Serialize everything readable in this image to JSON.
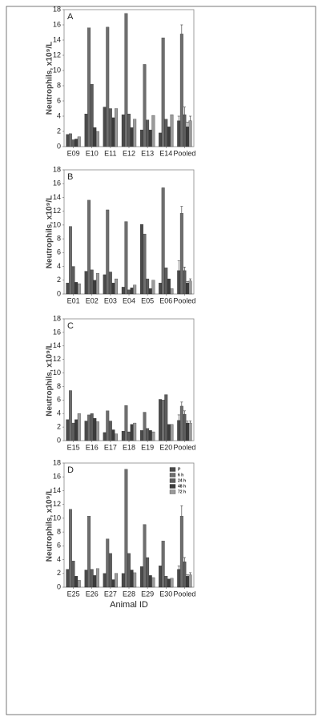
{
  "chart_data": [
    {
      "type": "bar",
      "title": "A",
      "ylabel": "Neutrophils, x10⁹/L",
      "categories": [
        "E09",
        "E10",
        "E11",
        "E12",
        "E13",
        "E14",
        "Pooled"
      ],
      "ylim": [
        0,
        18
      ],
      "yticks": [
        0,
        2,
        4,
        6,
        8,
        10,
        12,
        14,
        16,
        18
      ],
      "series": [
        {
          "color": "#4a4a4a",
          "values": [
            1.6,
            4.3,
            5.2,
            4.2,
            2.2,
            1.8,
            3.4
          ],
          "errors": [
            null,
            null,
            null,
            null,
            null,
            null,
            0.6
          ]
        },
        {
          "color": "#6e6e6e",
          "values": [
            1.7,
            15.6,
            15.7,
            17.5,
            10.8,
            14.3,
            14.8
          ],
          "errors": [
            null,
            null,
            null,
            null,
            null,
            null,
            1.2
          ]
        },
        {
          "color": "#5c5c5c",
          "values": [
            0.9,
            8.2,
            5.0,
            4.3,
            3.5,
            3.6,
            4.2
          ],
          "errors": [
            null,
            null,
            null,
            null,
            null,
            null,
            1.0
          ]
        },
        {
          "color": "#3c3c3c",
          "values": [
            1.0,
            2.5,
            3.8,
            2.5,
            2.2,
            2.6,
            2.6
          ],
          "errors": [
            null,
            null,
            null,
            null,
            null,
            null,
            0.6
          ]
        },
        {
          "color": "#9a9a9a",
          "values": [
            1.3,
            2.0,
            5.0,
            3.6,
            4.1,
            4.2,
            3.4
          ],
          "errors": [
            null,
            null,
            null,
            null,
            null,
            null,
            0.6
          ]
        }
      ]
    },
    {
      "type": "bar",
      "title": "B",
      "ylabel": "Neutrophils, x10⁹/L",
      "categories": [
        "E01",
        "E02",
        "E03",
        "E04",
        "E05",
        "E06",
        "Pooled"
      ],
      "ylim": [
        0,
        18
      ],
      "yticks": [
        0,
        2,
        4,
        6,
        8,
        10,
        12,
        14,
        16,
        18
      ],
      "series": [
        {
          "color": "#4a4a4a",
          "values": [
            1.6,
            3.3,
            2.8,
            1.0,
            10.1,
            1.6,
            3.4
          ],
          "errors": [
            null,
            null,
            null,
            null,
            null,
            null,
            1.4
          ]
        },
        {
          "color": "#6e6e6e",
          "values": [
            9.8,
            13.6,
            12.2,
            10.5,
            8.7,
            15.4,
            11.7
          ],
          "errors": [
            null,
            null,
            null,
            null,
            null,
            null,
            1.0
          ]
        },
        {
          "color": "#5c5c5c",
          "values": [
            4.0,
            3.5,
            3.2,
            0.6,
            2.2,
            3.8,
            3.4
          ],
          "errors": [
            null,
            null,
            null,
            null,
            null,
            null,
            0.5
          ]
        },
        {
          "color": "#3c3c3c",
          "values": [
            1.7,
            2.0,
            1.6,
            0.9,
            0.8,
            2.2,
            1.6
          ],
          "errors": [
            null,
            null,
            null,
            null,
            null,
            null,
            0.2
          ]
        },
        {
          "color": "#9a9a9a",
          "values": [
            1.5,
            3.0,
            2.2,
            1.3,
            2.0,
            0.8,
            1.9
          ],
          "errors": [
            null,
            null,
            null,
            null,
            null,
            null,
            0.3
          ]
        }
      ]
    },
    {
      "type": "bar",
      "title": "C",
      "ylabel": "Neutrophils, x10⁹/L",
      "categories": [
        "E15",
        "E16",
        "E17",
        "E18",
        "E19",
        "E20",
        "Pooled"
      ],
      "ylim": [
        0,
        18
      ],
      "yticks": [
        0,
        2,
        4,
        6,
        8,
        10,
        12,
        14,
        16,
        18
      ],
      "series": [
        {
          "color": "#4a4a4a",
          "values": [
            3.1,
            2.9,
            1.2,
            1.4,
            1.5,
            6.1,
            3.0
          ],
          "errors": [
            null,
            null,
            null,
            null,
            null,
            null,
            0.8
          ]
        },
        {
          "color": "#6e6e6e",
          "values": [
            7.4,
            3.8,
            4.4,
            5.2,
            4.2,
            6.0,
            5.1
          ],
          "errors": [
            null,
            null,
            null,
            null,
            null,
            null,
            0.6
          ]
        },
        {
          "color": "#5c5c5c",
          "values": [
            2.6,
            4.0,
            2.9,
            1.3,
            1.8,
            6.8,
            3.9
          ],
          "errors": [
            null,
            null,
            null,
            null,
            null,
            null,
            0.5
          ]
        },
        {
          "color": "#3c3c3c",
          "values": [
            3.1,
            3.3,
            1.6,
            2.4,
            1.5,
            2.4,
            2.6
          ],
          "errors": [
            null,
            null,
            null,
            null,
            null,
            null,
            0.3
          ]
        },
        {
          "color": "#9a9a9a",
          "values": [
            4.0,
            2.8,
            1.0,
            2.6,
            1.3,
            2.4,
            2.6
          ],
          "errors": [
            null,
            null,
            null,
            null,
            null,
            null,
            0.3
          ]
        }
      ]
    },
    {
      "type": "bar",
      "title": "D",
      "ylabel": "Neutrophils, x10⁹/L",
      "xlabel": "Animal ID",
      "legend": "upper right",
      "categories": [
        "E25",
        "E26",
        "E27",
        "E28",
        "E29",
        "E30",
        "Pooled"
      ],
      "ylim": [
        0,
        18
      ],
      "yticks": [
        0,
        2,
        4,
        6,
        8,
        10,
        12,
        14,
        16,
        18
      ],
      "series": [
        {
          "name": "P",
          "color": "#4a4a4a",
          "values": [
            2.6,
            2.5,
            2.0,
            2.0,
            3.0,
            3.1,
            2.6
          ],
          "errors": [
            null,
            null,
            null,
            null,
            null,
            null,
            0.5
          ]
        },
        {
          "name": "6 h",
          "color": "#6e6e6e",
          "values": [
            11.3,
            10.3,
            7.0,
            17.1,
            9.1,
            6.7,
            10.3
          ],
          "errors": [
            null,
            null,
            null,
            null,
            null,
            null,
            1.5
          ]
        },
        {
          "name": "24 h",
          "color": "#5c5c5c",
          "values": [
            3.8,
            2.6,
            4.9,
            4.9,
            4.3,
            1.6,
            3.7
          ],
          "errors": [
            null,
            null,
            null,
            null,
            null,
            null,
            0.6
          ]
        },
        {
          "name": "48 h",
          "color": "#3c3c3c",
          "values": [
            1.6,
            1.7,
            1.1,
            2.5,
            1.7,
            1.2,
            1.6
          ],
          "errors": [
            null,
            null,
            null,
            null,
            null,
            null,
            0.2
          ]
        },
        {
          "name": "72 h",
          "color": "#9a9a9a",
          "values": [
            1.0,
            2.7,
            2.0,
            2.1,
            1.4,
            1.3,
            1.8
          ],
          "errors": [
            null,
            null,
            null,
            null,
            null,
            null,
            0.3
          ]
        }
      ]
    }
  ]
}
